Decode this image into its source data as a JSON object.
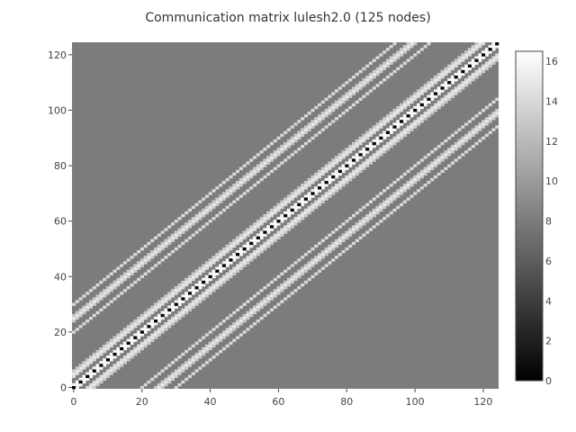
{
  "chart_data": {
    "type": "heatmap",
    "title": "Communication matrix lulesh2.0 (125 nodes)",
    "n": 125,
    "colorscale": "greys",
    "zlim": [
      0,
      16.5
    ],
    "background_value": 8,
    "xlim": [
      0,
      124
    ],
    "ylim": [
      0,
      124
    ],
    "x_ticks": [
      "0",
      "20",
      "40",
      "60",
      "80",
      "100",
      "120"
    ],
    "y_ticks": [
      "0",
      "20",
      "40",
      "60",
      "80",
      "100",
      "120"
    ],
    "colorbar_ticks": [
      "0",
      "2",
      "4",
      "6",
      "8",
      "10",
      "12",
      "14",
      "16"
    ],
    "diagonal": {
      "values": [
        0,
        16
      ]
    },
    "neighbor_bands": [
      {
        "offset": 1,
        "value": 16
      },
      {
        "offset": 4,
        "value": 14
      },
      {
        "offset": 5,
        "value": 15
      },
      {
        "offset": 6,
        "value": 13
      },
      {
        "offset": 20,
        "value": 14
      },
      {
        "offset": 24,
        "value": 13
      },
      {
        "offset": 25,
        "value": 15
      },
      {
        "offset": 26,
        "value": 13
      },
      {
        "offset": 30,
        "value": 14
      }
    ]
  }
}
